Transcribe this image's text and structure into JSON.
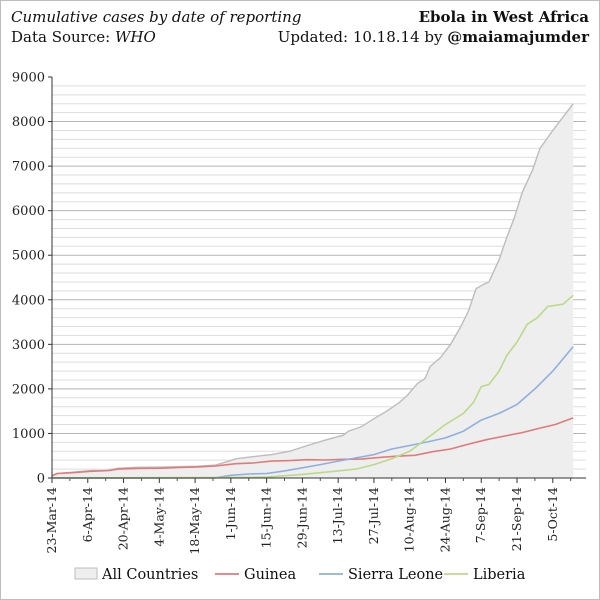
{
  "header": {
    "subtitle": "Cumulative cases by date of reporting",
    "source_label": "Data Source:",
    "source_value": "WHO",
    "title": "Ebola in West Africa",
    "updated_label": "Updated: 10.18.14 by",
    "handle": "@maiamajumder"
  },
  "colors": {
    "all": "#bdbdbd",
    "all_fill": "#eeeeee",
    "guinea": "#e07b7b",
    "sierra_leone": "#8fb0de",
    "liberia": "#bcd98a"
  },
  "chart_data": {
    "type": "area",
    "xlabel": "",
    "ylabel": "",
    "ylim": [
      0,
      9000
    ],
    "yticks": [
      "0",
      "1000",
      "2000",
      "3000",
      "4000",
      "5000",
      "6000",
      "7000",
      "8000",
      "9000"
    ],
    "xlim": [
      "2014-03-23",
      "2014-10-18"
    ],
    "xtick_labels": [
      "23-Mar-14",
      "6-Apr-14",
      "20-Apr-14",
      "4-May-14",
      "18-May-14",
      "1-Jun-14",
      "15-Jun-14",
      "29-Jun-14",
      "13-Jul-14",
      "27-Jul-14",
      "10-Aug-14",
      "24-Aug-14",
      "7-Sep-14",
      "21-Sep-14",
      "5-Oct-14"
    ],
    "grid": "horizontal",
    "legend_position": "bottom",
    "series": [
      {
        "name": "All Countries",
        "key": "all",
        "style": "area",
        "points": [
          [
            "2014-03-23",
            50
          ],
          [
            "2014-03-25",
            100
          ],
          [
            "2014-03-31",
            130
          ],
          [
            "2014-04-07",
            165
          ],
          [
            "2014-04-14",
            170
          ],
          [
            "2014-04-18",
            220
          ],
          [
            "2014-04-25",
            240
          ],
          [
            "2014-05-05",
            245
          ],
          [
            "2014-05-12",
            255
          ],
          [
            "2014-05-19",
            265
          ],
          [
            "2014-05-26",
            290
          ],
          [
            "2014-05-31",
            375
          ],
          [
            "2014-06-03",
            430
          ],
          [
            "2014-06-10",
            480
          ],
          [
            "2014-06-17",
            525
          ],
          [
            "2014-06-24",
            600
          ],
          [
            "2014-07-01",
            730
          ],
          [
            "2014-07-08",
            850
          ],
          [
            "2014-07-15",
            960
          ],
          [
            "2014-07-17",
            1050
          ],
          [
            "2014-07-22",
            1150
          ],
          [
            "2014-07-27",
            1330
          ],
          [
            "2014-08-01",
            1500
          ],
          [
            "2014-08-06",
            1700
          ],
          [
            "2014-08-09",
            1850
          ],
          [
            "2014-08-13",
            2120
          ],
          [
            "2014-08-16",
            2230
          ],
          [
            "2014-08-18",
            2500
          ],
          [
            "2014-08-22",
            2700
          ],
          [
            "2014-08-26",
            3000
          ],
          [
            "2014-08-30",
            3400
          ],
          [
            "2014-09-02",
            3750
          ],
          [
            "2014-09-05",
            4250
          ],
          [
            "2014-09-08",
            4350
          ],
          [
            "2014-09-10",
            4400
          ],
          [
            "2014-09-14",
            4900
          ],
          [
            "2014-09-17",
            5400
          ],
          [
            "2014-09-20",
            5850
          ],
          [
            "2014-09-23",
            6400
          ],
          [
            "2014-09-27",
            6900
          ],
          [
            "2014-09-30",
            7400
          ],
          [
            "2014-10-05",
            7800
          ],
          [
            "2014-10-09",
            8100
          ],
          [
            "2014-10-13",
            8400
          ]
        ]
      },
      {
        "name": "Guinea",
        "key": "guinea",
        "style": "line",
        "points": [
          [
            "2014-03-23",
            50
          ],
          [
            "2014-03-25",
            100
          ],
          [
            "2014-03-31",
            120
          ],
          [
            "2014-04-07",
            150
          ],
          [
            "2014-04-14",
            165
          ],
          [
            "2014-04-18",
            200
          ],
          [
            "2014-04-25",
            215
          ],
          [
            "2014-05-05",
            220
          ],
          [
            "2014-05-12",
            235
          ],
          [
            "2014-05-19",
            250
          ],
          [
            "2014-05-26",
            270
          ],
          [
            "2014-06-03",
            320
          ],
          [
            "2014-06-10",
            340
          ],
          [
            "2014-06-17",
            380
          ],
          [
            "2014-06-24",
            390
          ],
          [
            "2014-07-01",
            410
          ],
          [
            "2014-07-08",
            405
          ],
          [
            "2014-07-15",
            420
          ],
          [
            "2014-07-22",
            425
          ],
          [
            "2014-07-29",
            460
          ],
          [
            "2014-08-05",
            490
          ],
          [
            "2014-08-12",
            510
          ],
          [
            "2014-08-19",
            590
          ],
          [
            "2014-08-26",
            650
          ],
          [
            "2014-09-02",
            760
          ],
          [
            "2014-09-09",
            860
          ],
          [
            "2014-09-16",
            940
          ],
          [
            "2014-09-23",
            1020
          ],
          [
            "2014-09-30",
            1120
          ],
          [
            "2014-10-06",
            1200
          ],
          [
            "2014-10-13",
            1350
          ]
        ]
      },
      {
        "name": "Sierra Leone",
        "key": "sierra_leone",
        "style": "line",
        "points": [
          [
            "2014-03-23",
            0
          ],
          [
            "2014-05-26",
            5
          ],
          [
            "2014-06-01",
            60
          ],
          [
            "2014-06-08",
            90
          ],
          [
            "2014-06-15",
            100
          ],
          [
            "2014-06-22",
            160
          ],
          [
            "2014-06-29",
            230
          ],
          [
            "2014-07-06",
            300
          ],
          [
            "2014-07-13",
            380
          ],
          [
            "2014-07-20",
            450
          ],
          [
            "2014-07-27",
            525
          ],
          [
            "2014-08-03",
            650
          ],
          [
            "2014-08-10",
            730
          ],
          [
            "2014-08-17",
            810
          ],
          [
            "2014-08-24",
            900
          ],
          [
            "2014-08-31",
            1050
          ],
          [
            "2014-09-07",
            1300
          ],
          [
            "2014-09-14",
            1450
          ],
          [
            "2014-09-21",
            1650
          ],
          [
            "2014-09-28",
            2000
          ],
          [
            "2014-10-05",
            2400
          ],
          [
            "2014-10-13",
            2950
          ]
        ]
      },
      {
        "name": "Liberia",
        "key": "liberia",
        "style": "line",
        "points": [
          [
            "2014-03-23",
            0
          ],
          [
            "2014-06-01",
            10
          ],
          [
            "2014-06-15",
            20
          ],
          [
            "2014-06-29",
            80
          ],
          [
            "2014-07-06",
            120
          ],
          [
            "2014-07-13",
            160
          ],
          [
            "2014-07-20",
            200
          ],
          [
            "2014-07-27",
            300
          ],
          [
            "2014-08-03",
            430
          ],
          [
            "2014-08-10",
            600
          ],
          [
            "2014-08-17",
            900
          ],
          [
            "2014-08-24",
            1200
          ],
          [
            "2014-08-31",
            1450
          ],
          [
            "2014-09-04",
            1700
          ],
          [
            "2014-09-07",
            2050
          ],
          [
            "2014-09-10",
            2100
          ],
          [
            "2014-09-14",
            2400
          ],
          [
            "2014-09-17",
            2750
          ],
          [
            "2014-09-21",
            3050
          ],
          [
            "2014-09-25",
            3450
          ],
          [
            "2014-09-29",
            3600
          ],
          [
            "2014-10-03",
            3850
          ],
          [
            "2014-10-09",
            3900
          ],
          [
            "2014-10-13",
            4100
          ]
        ]
      }
    ]
  }
}
